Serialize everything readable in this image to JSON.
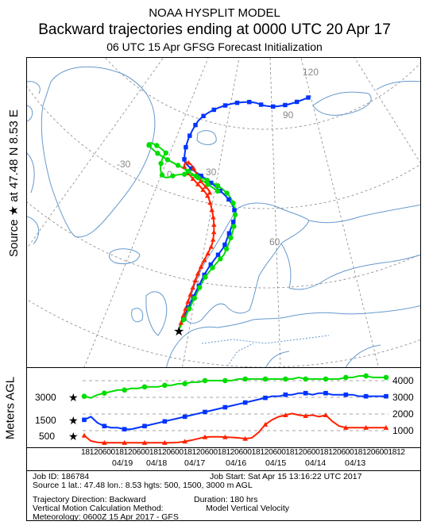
{
  "title_lines": {
    "line1": "NOAA HYSPLIT MODEL",
    "line2": "Backward trajectories ending at 0000 UTC 20 Apr 17",
    "line3": "06 UTC 15 Apr    GFSG  Forecast Initialization"
  },
  "side_label": "Source ★ at   47.48 N    8.53 E",
  "vertical_axis_label": "Meters AGL",
  "map_labels": {
    "lon_120": "120",
    "lon_90": "90",
    "lon_minus30": "-30",
    "lon_0": "0",
    "lon_30": "30",
    "lat_60": "60"
  },
  "vertical_panel": {
    "left_ticks": [
      "3000",
      "1500",
      "500"
    ],
    "right_ticks": [
      "4000",
      "3000",
      "2000",
      "1000"
    ]
  },
  "time_axis": {
    "hour_labels": "1812060018120600181206001812060018120600181206001812060018120600181206001812",
    "date_labels": [
      "04/19",
      "04/18",
      "04/17",
      "04/16",
      "04/15",
      "04/14",
      "04/13"
    ]
  },
  "footer": {
    "job_id": "Job ID: 186784",
    "job_start": "Job Start: Sat Apr 15 13:16:22 UTC 2017",
    "source_line": "Source 1 lat.: 47.48  lon.: 8.53  hgts: 500, 1500, 3000 m AGL",
    "direction": "Trajectory Direction: Backward",
    "duration": "Duration: 180 hrs",
    "vertical_motion": "Vertical Motion Calculation Method:",
    "vertical_motion_value": "Model Vertical Velocity",
    "meteorology": "Meteorology: 0600Z 15 Apr 2017 - GFS"
  },
  "colors": {
    "red": "#ff2200",
    "blue": "#0033ff",
    "green": "#00dd00",
    "coast": "#6699cc",
    "grid": "#888888"
  },
  "chart_data": {
    "type": "line",
    "x_label": "",
    "y_label": "Meters AGL",
    "ylim": [
      0,
      4500
    ],
    "series": [
      {
        "color": "red",
        "marker": "triangle",
        "start_height_m": 500,
        "heights_m": [
          500,
          150,
          60,
          40,
          40,
          40,
          40,
          40,
          40,
          40,
          40,
          40,
          40,
          40,
          60,
          120,
          200,
          300,
          400,
          420,
          420,
          400,
          380,
          350,
          300,
          350,
          700,
          1200,
          1500,
          1700,
          1800,
          1900,
          1800,
          1750,
          1800,
          1700,
          1800,
          1400,
          1100,
          1000,
          1000,
          1000,
          1000,
          1000,
          1000,
          1000
        ]
      },
      {
        "color": "blue",
        "marker": "square",
        "start_height_m": 1500,
        "heights_m": [
          1500,
          1700,
          1300,
          1100,
          1000,
          1000,
          900,
          900,
          1000,
          1100,
          1200,
          1300,
          1400,
          1500,
          1600,
          1700,
          1800,
          1900,
          2000,
          2100,
          2200,
          2300,
          2400,
          2500,
          2600,
          2700,
          2800,
          2900,
          3000,
          3000,
          3100,
          3100,
          3200,
          3200,
          3100,
          3200,
          3200,
          3100,
          3100,
          3100,
          3100,
          3000,
          3000,
          3000,
          3000,
          3000
        ]
      },
      {
        "color": "green",
        "marker": "circle",
        "start_height_m": 3000,
        "heights_m": [
          3000,
          2900,
          3100,
          3200,
          3300,
          3400,
          3400,
          3500,
          3500,
          3600,
          3600,
          3600,
          3700,
          3700,
          3800,
          3800,
          3900,
          3900,
          4000,
          4000,
          4000,
          4000,
          4000,
          4100,
          4100,
          4100,
          4100,
          4100,
          4100,
          4100,
          4100,
          4100,
          4200,
          4100,
          4100,
          4100,
          4100,
          4100,
          4100,
          4200,
          4200,
          4300,
          4300,
          4200,
          4200,
          4200
        ]
      }
    ]
  }
}
